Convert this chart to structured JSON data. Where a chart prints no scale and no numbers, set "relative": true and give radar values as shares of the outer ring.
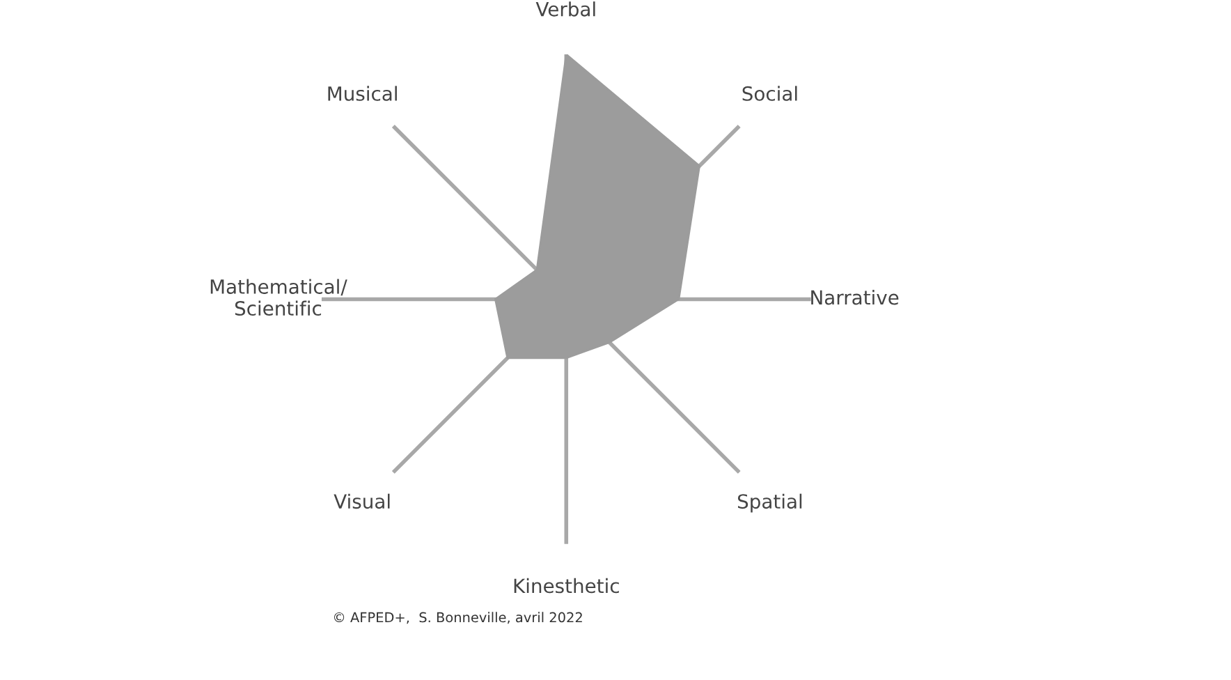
{
  "chart_data": {
    "type": "radar",
    "relative": true,
    "categories": [
      "Verbal",
      "Social",
      "Narrative",
      "Spatial",
      "Kinesthetic",
      "Visual",
      "Mathematical/\nScientific",
      "Musical"
    ],
    "series": [
      {
        "color": "#9c9c9c",
        "values": [
          1.0,
          0.77,
          0.46,
          0.25,
          0.24,
          0.34,
          0.29,
          0.17
        ]
      }
    ],
    "grid": "x",
    "annotations": [
      "© AFPED+,  S. Bonneville, avril 2022"
    ]
  }
}
